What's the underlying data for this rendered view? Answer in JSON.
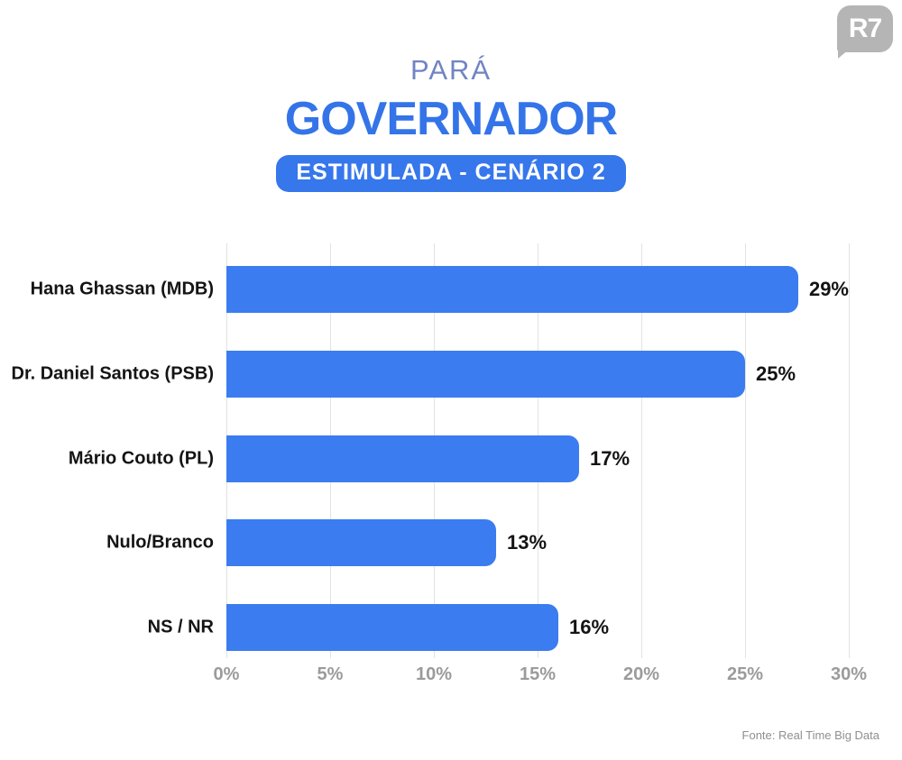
{
  "logo": {
    "label": "R7"
  },
  "chart_data": {
    "type": "bar",
    "orientation": "horizontal",
    "region_label": "PARÁ",
    "title": "GOVERNADOR",
    "subtitle": "ESTIMULADA - CENÁRIO 2",
    "categories": [
      "Hana Ghassan (MDB)",
      "Dr. Daniel Santos (PSB)",
      "Mário Couto (PL)",
      "Nulo/Branco",
      "NS / NR"
    ],
    "values": [
      29,
      25,
      17,
      13,
      16
    ],
    "value_labels": [
      "29%",
      "25%",
      "17%",
      "13%",
      "16%"
    ],
    "xlim": [
      0,
      30
    ],
    "x_ticks": [
      0,
      5,
      10,
      15,
      20,
      25,
      30
    ],
    "x_tick_labels": [
      "0%",
      "5%",
      "10%",
      "15%",
      "20%",
      "25%",
      "30%"
    ],
    "grid": "vertical",
    "legend": "none",
    "bar_color": "#3b7cf0"
  },
  "footer": {
    "source": "Fonte: Real Time Big Data"
  }
}
